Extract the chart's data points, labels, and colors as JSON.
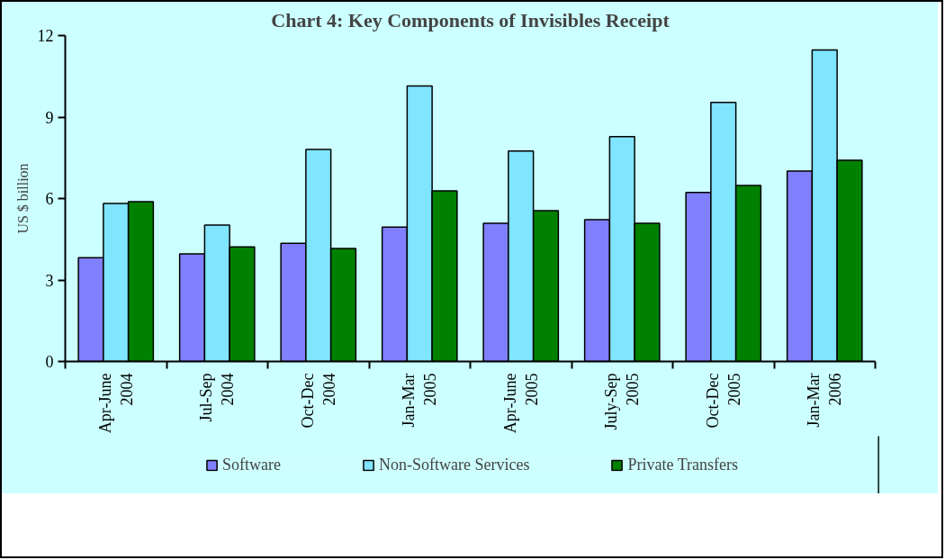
{
  "chart_data": {
    "type": "bar",
    "title": "Chart 4: Key Components of Invisibles Receipt",
    "ylabel": "US $ billion",
    "categories": [
      "Apr-June\n2004",
      "Jul-Sep\n2004",
      "Oct-Dec\n2004",
      "Jan-Mar\n2005",
      "Apr-June\n2005",
      "July-Sep\n2005",
      "Oct-Dec\n2005",
      "Jan-Mar\n2006"
    ],
    "series": [
      {
        "name": "Software",
        "color": "#8080ff",
        "values": [
          3.82,
          3.96,
          4.35,
          4.95,
          5.09,
          5.22,
          6.22,
          7.01
        ]
      },
      {
        "name": "Non-Software Services",
        "color": "#80e5ff",
        "values": [
          5.82,
          5.02,
          7.81,
          10.14,
          7.75,
          8.28,
          9.54,
          11.47
        ]
      },
      {
        "name": "Private Transfers",
        "color": "#008000",
        "values": [
          5.88,
          4.22,
          4.16,
          6.28,
          5.55,
          5.09,
          6.48,
          7.41
        ]
      }
    ],
    "ylim": [
      0,
      12
    ],
    "yticks": [
      0,
      3,
      6,
      9,
      12
    ],
    "grid": false,
    "legend": "bottom"
  }
}
